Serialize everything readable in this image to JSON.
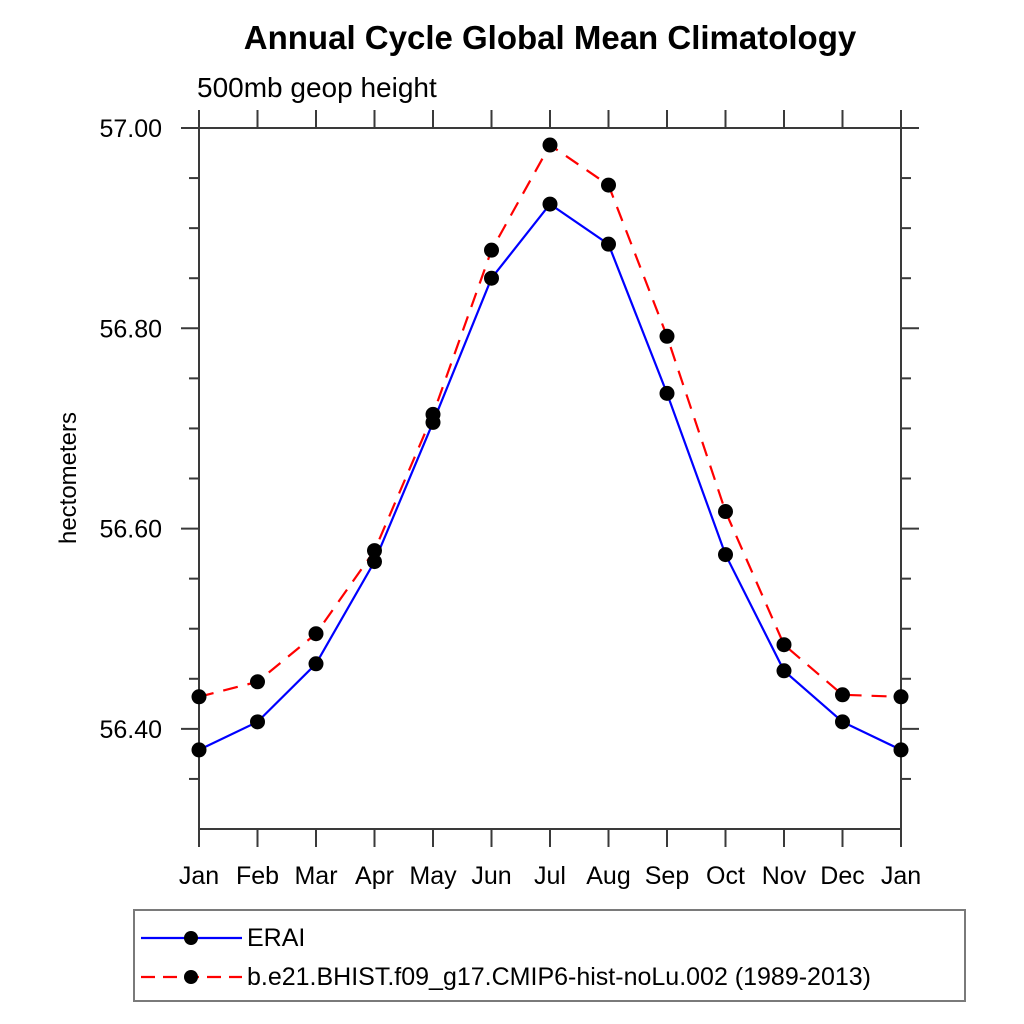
{
  "chart_data": {
    "type": "line",
    "title": "Annual Cycle Global Mean Climatology",
    "subtitle": "500mb geop height",
    "ylabel": "hectometers",
    "xlabel": "",
    "categories": [
      "Jan",
      "Feb",
      "Mar",
      "Apr",
      "May",
      "Jun",
      "Jul",
      "Aug",
      "Sep",
      "Oct",
      "Nov",
      "Dec",
      "Jan"
    ],
    "ylim": [
      56.3,
      57.0
    ],
    "y_ticks_major": [
      56.4,
      56.6,
      56.8,
      57.0
    ],
    "y_minor_step": 0.05,
    "grid": false,
    "legend_position": "bottom-left-boxed",
    "axis_color": "#3a3a3a",
    "marker_color": "#000000",
    "marker_shape": "filled-circle",
    "series": [
      {
        "name": "ERAI",
        "color": "#0000ff",
        "line_style": "solid",
        "values": [
          56.379,
          56.407,
          56.465,
          56.567,
          56.706,
          56.85,
          56.924,
          56.884,
          56.735,
          56.574,
          56.458,
          56.407,
          56.379
        ]
      },
      {
        "name": "b.e21.BHIST.f09_g17.CMIP6-hist-noLu.002 (1989-2013)",
        "color": "#ff0000",
        "line_style": "dashed",
        "values": [
          56.432,
          56.447,
          56.495,
          56.578,
          56.714,
          56.878,
          56.983,
          56.943,
          56.792,
          56.617,
          56.484,
          56.434,
          56.432
        ]
      }
    ]
  }
}
